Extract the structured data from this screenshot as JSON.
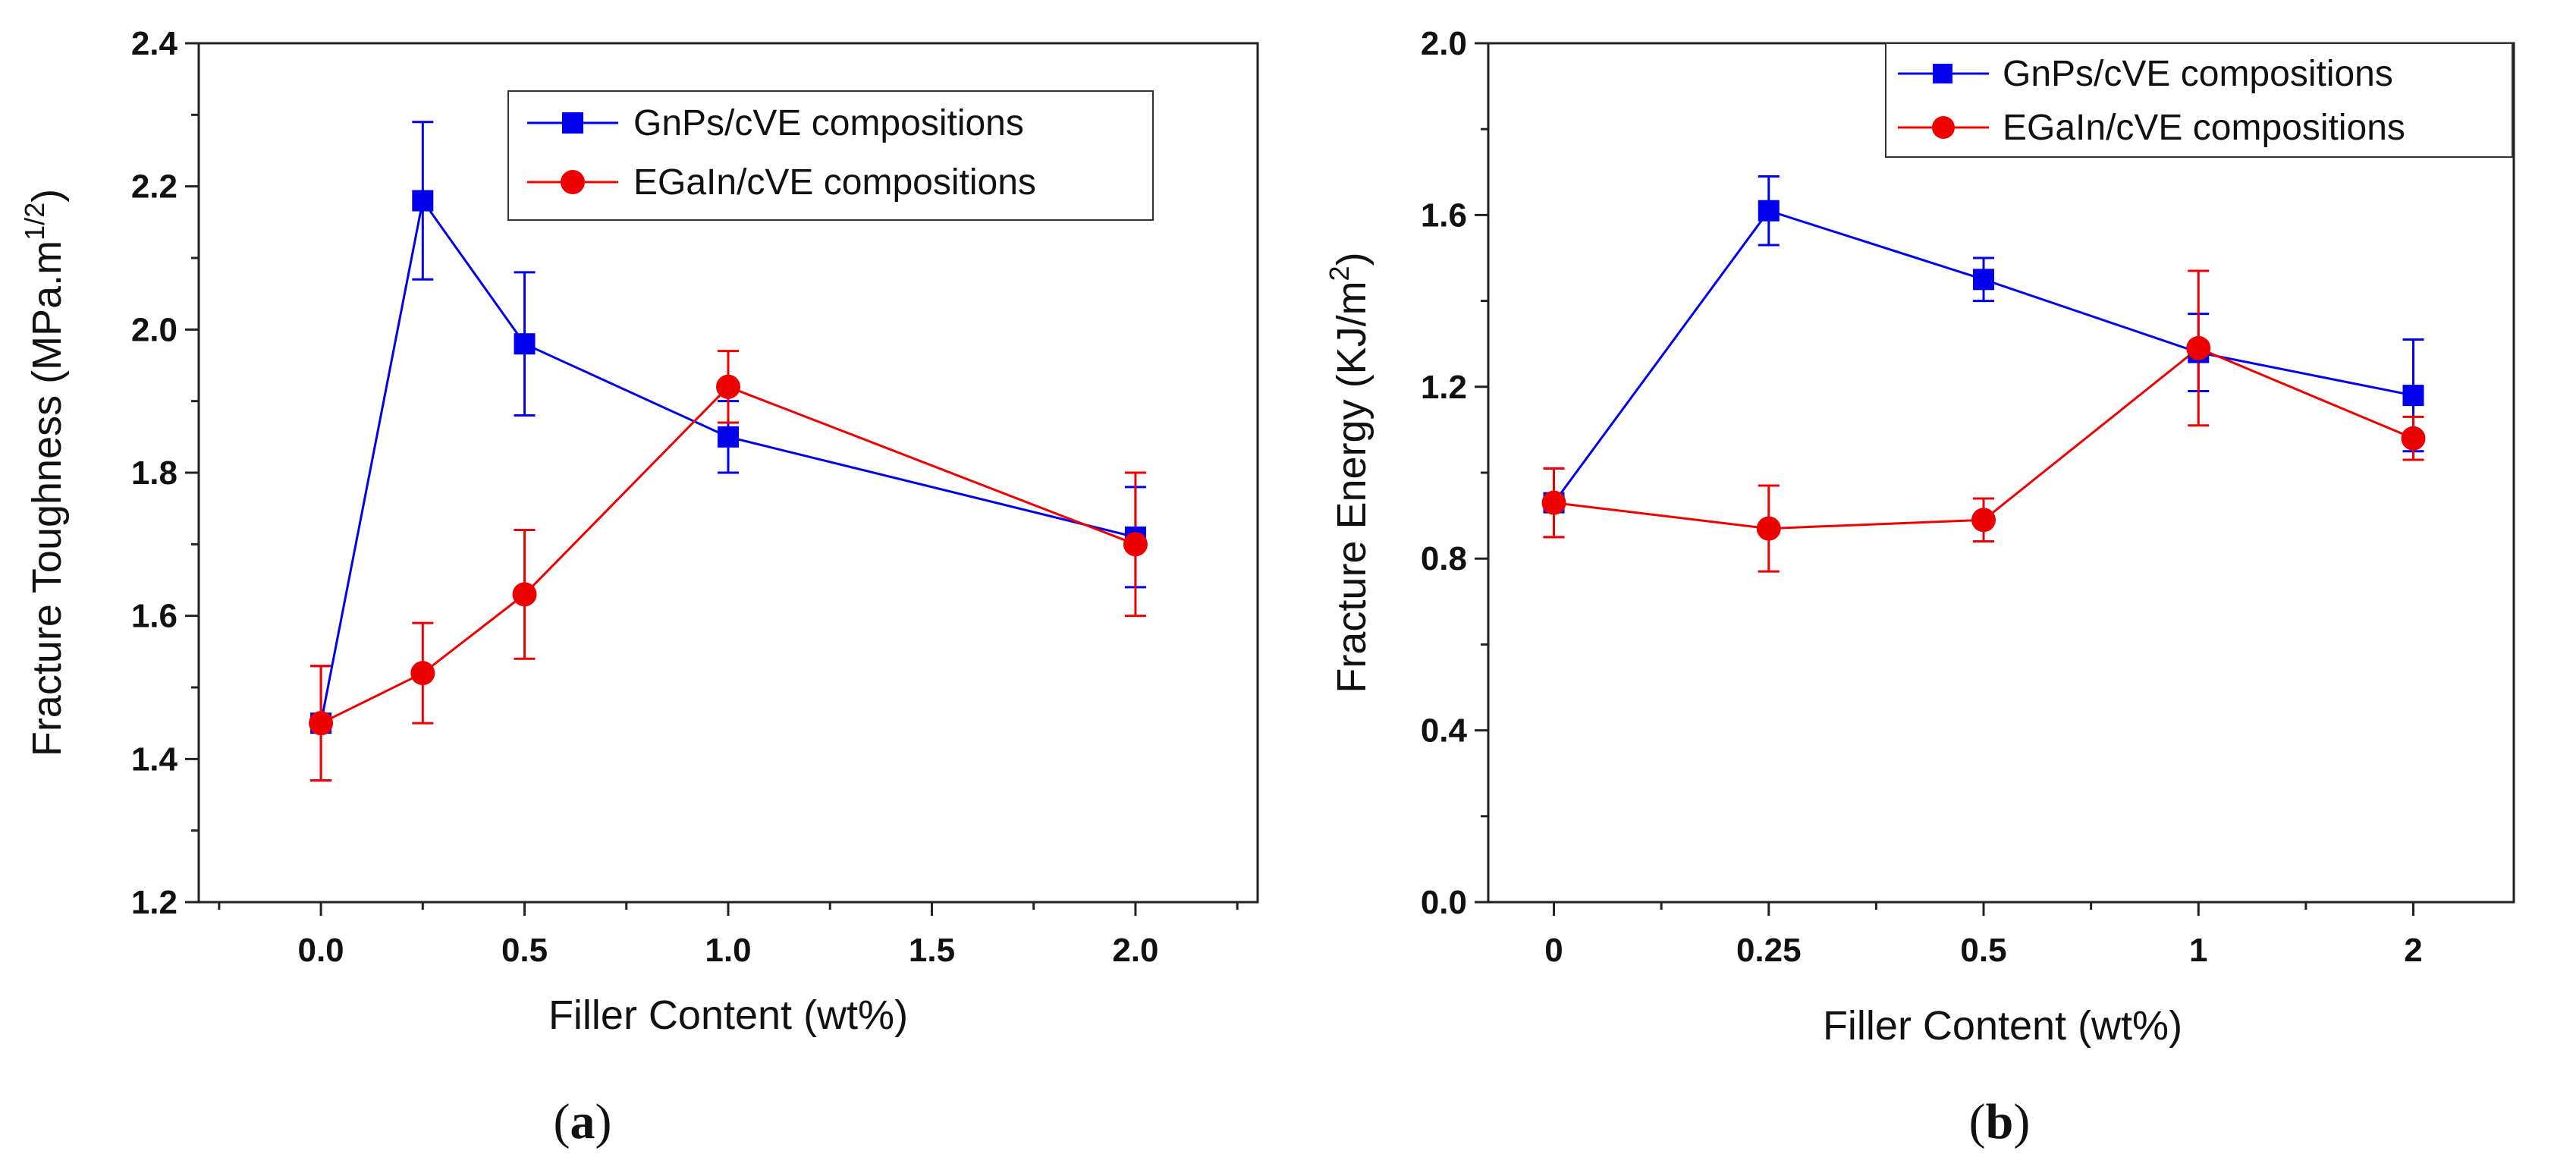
{
  "chart_data": [
    {
      "type": "line",
      "panel_label": {
        "open": "(",
        "letter": "a",
        "close": ")"
      },
      "xlabel": "Filler Content (wt%)",
      "ylabel": {
        "main": "Fracture Toughness (MPa.m",
        "sup": "1/2",
        "end": ")"
      },
      "xlim": [
        -0.3,
        2.3
      ],
      "ylim": [
        1.2,
        2.4
      ],
      "x_ticks": [
        0.0,
        0.5,
        1.0,
        1.5,
        2.0
      ],
      "x_tick_labels": [
        "0.0",
        "0.5",
        "1.0",
        "1.5",
        "2.0"
      ],
      "x_minor_ticks": [
        -0.25,
        0.25,
        0.75,
        1.25,
        1.75,
        2.25
      ],
      "y_ticks": [
        1.2,
        1.4,
        1.6,
        1.8,
        2.0,
        2.2,
        2.4
      ],
      "y_tick_labels": [
        "1.2",
        "1.4",
        "1.6",
        "1.8",
        "2.0",
        "2.2",
        "2.4"
      ],
      "y_minor_ticks": [
        1.3,
        1.5,
        1.7,
        1.9,
        2.1,
        2.3
      ],
      "legend_position": "top-right",
      "grid": false,
      "series": [
        {
          "name": "GnPs/cVE compositions",
          "color": "#0000ee",
          "marker": "square",
          "x": [
            0,
            0.25,
            0.5,
            1.0,
            2.0
          ],
          "y": [
            1.45,
            2.18,
            1.98,
            1.85,
            1.71
          ],
          "err": [
            0.08,
            0.11,
            0.1,
            0.05,
            0.07
          ]
        },
        {
          "name": "EGaIn/cVE compositions",
          "color": "#ee0000",
          "marker": "circle",
          "x": [
            0,
            0.25,
            0.5,
            1.0,
            2.0
          ],
          "y": [
            1.45,
            1.52,
            1.63,
            1.92,
            1.7
          ],
          "err": [
            0.08,
            0.07,
            0.09,
            0.05,
            0.1
          ]
        }
      ]
    },
    {
      "type": "line",
      "panel_label": {
        "open": "(",
        "letter": "b",
        "close": ")"
      },
      "xlabel": "Filler Content (wt%)",
      "ylabel": {
        "main": "Fracture Energy (KJ/m",
        "sup": "2",
        "end": ")"
      },
      "categories": [
        "0",
        "0.25",
        "0.5",
        "1",
        "2"
      ],
      "ylim": [
        0.0,
        2.0
      ],
      "y_ticks": [
        0.0,
        0.4,
        0.8,
        1.2,
        1.6,
        2.0
      ],
      "y_tick_labels": [
        "0.0",
        "0.4",
        "0.8",
        "1.2",
        "1.6",
        "2.0"
      ],
      "y_minor_ticks": [
        0.2,
        0.6,
        1.0,
        1.4,
        1.8
      ],
      "legend_position": "top-right",
      "grid": false,
      "series": [
        {
          "name": "GnPs/cVE compositions",
          "color": "#0000ee",
          "marker": "square",
          "values": [
            0.93,
            1.61,
            1.45,
            1.28,
            1.18
          ],
          "err": [
            0.08,
            0.08,
            0.05,
            0.09,
            0.13
          ]
        },
        {
          "name": "EGaIn/cVE compositions",
          "color": "#ee0000",
          "marker": "circle",
          "values": [
            0.93,
            0.87,
            0.89,
            1.29,
            1.08
          ],
          "err": [
            0.08,
            0.1,
            0.05,
            0.18,
            0.05
          ]
        }
      ]
    }
  ]
}
